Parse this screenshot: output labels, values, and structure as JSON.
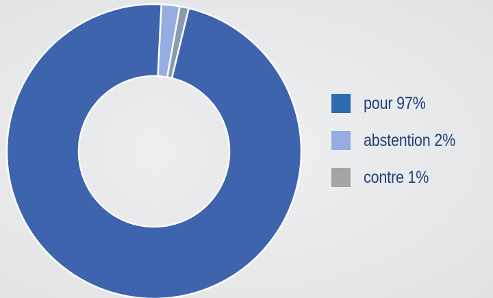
{
  "chart_data": {
    "type": "pie",
    "donut": true,
    "legend_position": "right",
    "slices": [
      {
        "name": "pour",
        "value": 97,
        "color": "#3d64ad",
        "legend_color": "#2f6bb0"
      },
      {
        "name": "abstention",
        "value": 2,
        "color": "#95ade0",
        "legend_color": "#95ade0"
      },
      {
        "name": "contre",
        "value": 1,
        "color": "#8a9bb0",
        "legend_color": "#a5a5a5"
      }
    ],
    "legend": [
      {
        "label": "pour 97%"
      },
      {
        "label": "abstention 2%"
      },
      {
        "label": "contre 1%"
      }
    ]
  }
}
